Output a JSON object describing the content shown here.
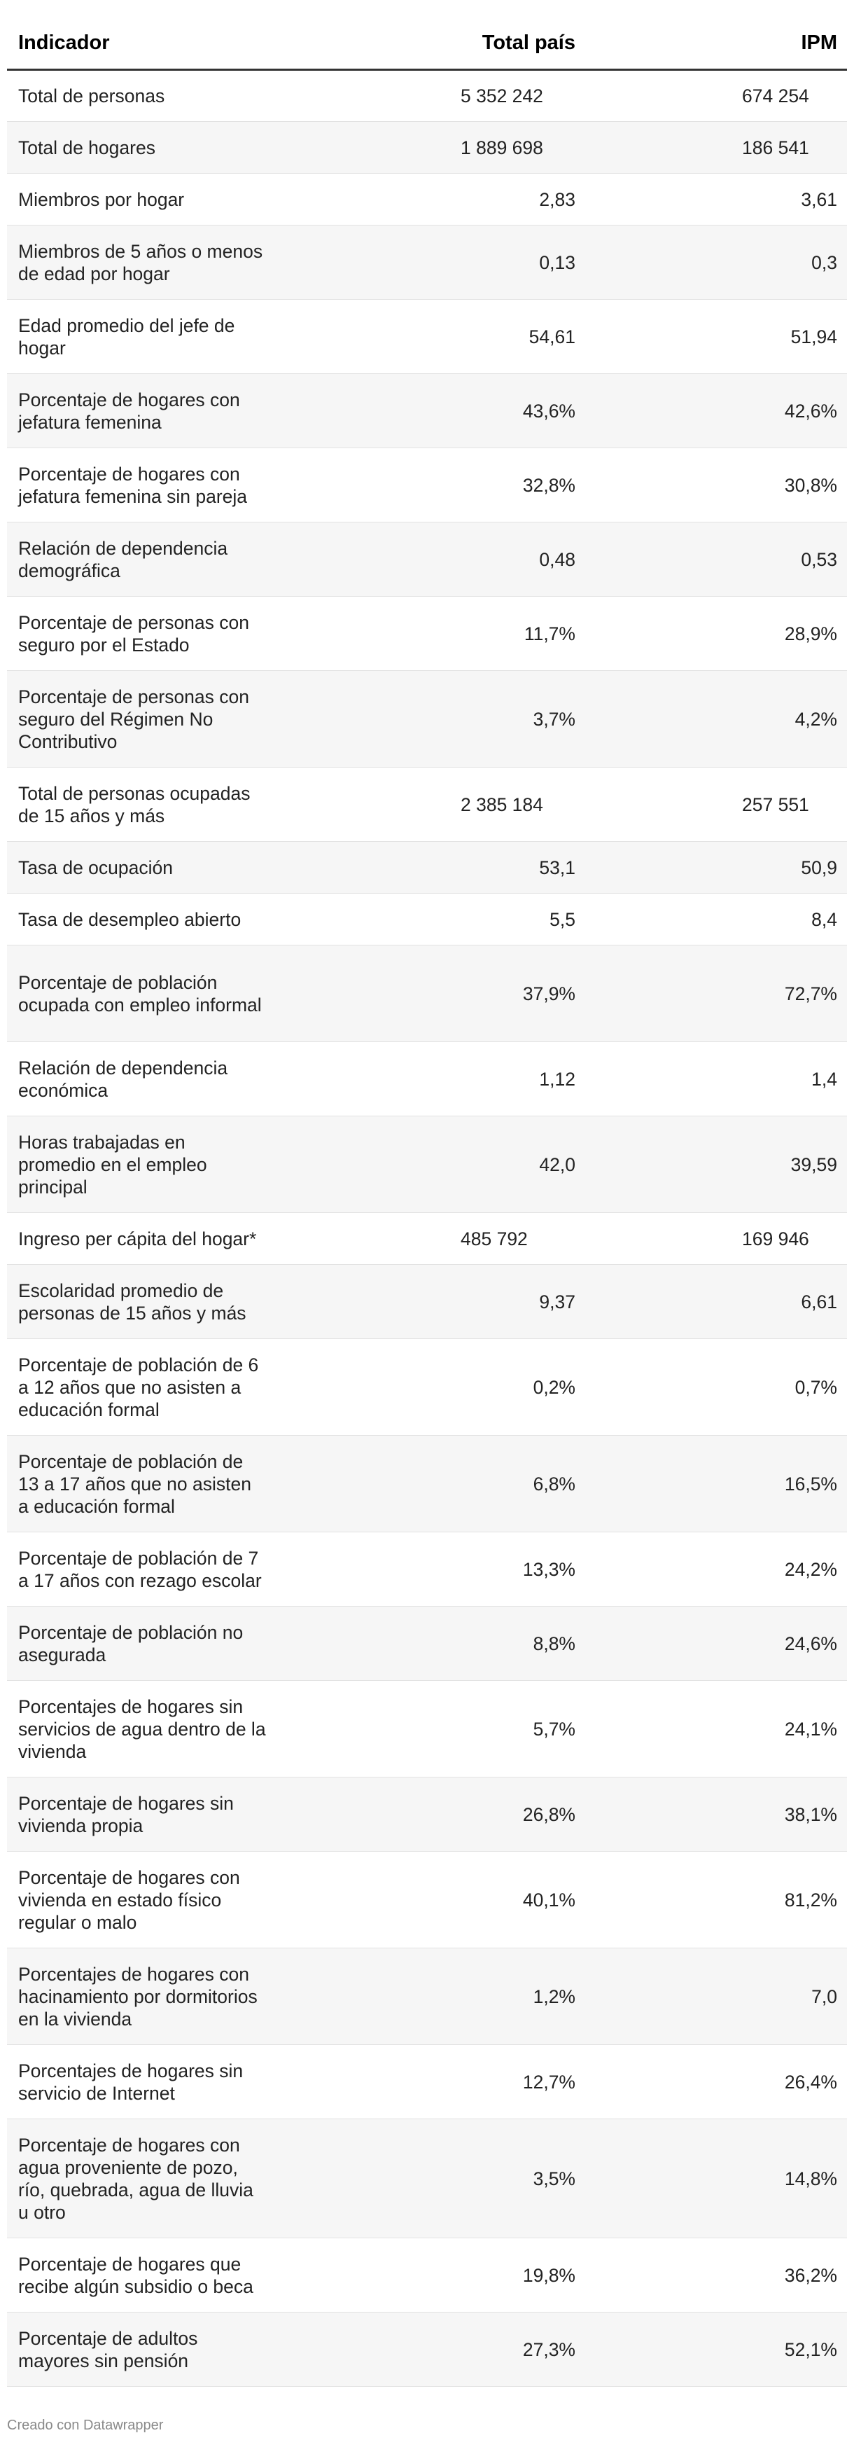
{
  "chart_data": {
    "type": "table",
    "columns": [
      "Indicador",
      "Total país",
      "IPM"
    ],
    "rows": [
      {
        "indicador": "Total de personas",
        "total_pais": "5 352 242",
        "ipm": "674 254",
        "big": true
      },
      {
        "indicador": "Total de hogares",
        "total_pais": "1 889 698",
        "ipm": "186 541",
        "big": true
      },
      {
        "indicador": "Miembros por hogar",
        "total_pais": "2,83",
        "ipm": "3,61"
      },
      {
        "indicador": "Miembros de 5 años o menos de edad por hogar",
        "total_pais": "0,13",
        "ipm": "0,3"
      },
      {
        "indicador": "Edad promedio del jefe de hogar",
        "total_pais": "54,61",
        "ipm": "51,94"
      },
      {
        "indicador": "Porcentaje de hogares con jefatura femenina",
        "total_pais": "43,6%",
        "ipm": "42,6%"
      },
      {
        "indicador": "Porcentaje de hogares con jefatura femenina sin pareja",
        "total_pais": "32,8%",
        "ipm": "30,8%"
      },
      {
        "indicador": "Relación de dependencia demográfica",
        "total_pais": "0,48",
        "ipm": "0,53"
      },
      {
        "indicador": "Porcentaje de personas con seguro por el Estado",
        "total_pais": "11,7%",
        "ipm": "28,9%"
      },
      {
        "indicador": "Porcentaje de personas con seguro del Régimen No Contributivo",
        "total_pais": "3,7%",
        "ipm": "4,2%"
      },
      {
        "indicador": "Total de personas ocupadas de 15 años y más",
        "total_pais": "2 385 184",
        "ipm": "257 551",
        "big": true
      },
      {
        "indicador": "Tasa de ocupación",
        "total_pais": "53,1",
        "ipm": "50,9"
      },
      {
        "indicador": "Tasa de desempleo abierto",
        "total_pais": "5,5",
        "ipm": "8,4"
      },
      {
        "indicador": "Porcentaje de población ocupada con empleo informal",
        "total_pais": "37,9%",
        "ipm": "72,7%"
      },
      {
        "indicador": "Relación de dependencia económica",
        "total_pais": "1,12",
        "ipm": "1,4"
      },
      {
        "indicador": "Horas trabajadas en promedio en el empleo principal",
        "total_pais": "42,0",
        "ipm": "39,59"
      },
      {
        "indicador": "Ingreso per cápita del hogar*",
        "total_pais": "485 792",
        "ipm": "169 946",
        "big": true
      },
      {
        "indicador": "Escolaridad promedio de personas de 15 años y más",
        "total_pais": "9,37",
        "ipm": "6,61"
      },
      {
        "indicador": "Porcentaje de población de 6 a 12 años que no asisten a educación formal",
        "total_pais": "0,2%",
        "ipm": "0,7%"
      },
      {
        "indicador": "Porcentaje de población de 13 a 17 años que no asisten a educación formal",
        "total_pais": "6,8%",
        "ipm": "16,5%"
      },
      {
        "indicador": "Porcentaje de población de 7 a 17 años con rezago escolar",
        "total_pais": "13,3%",
        "ipm": "24,2%"
      },
      {
        "indicador": "Porcentaje de población no asegurada",
        "total_pais": "8,8%",
        "ipm": "24,6%"
      },
      {
        "indicador": "Porcentajes de hogares sin servicios de agua dentro de la vivienda",
        "total_pais": "5,7%",
        "ipm": "24,1%"
      },
      {
        "indicador": "Porcentaje de hogares sin vivienda propia",
        "total_pais": "26,8%",
        "ipm": "38,1%"
      },
      {
        "indicador": "Porcentaje de hogares con vivienda en estado físico regular o malo",
        "total_pais": "40,1%",
        "ipm": "81,2%"
      },
      {
        "indicador": "Porcentajes de hogares con hacinamiento por dormitorios en la vivienda",
        "total_pais": "1,2%",
        "ipm": "7,0"
      },
      {
        "indicador": "Porcentajes de hogares sin servicio de Internet",
        "total_pais": "12,7%",
        "ipm": "26,4%"
      },
      {
        "indicador": "Porcentaje de hogares con agua proveniente de pozo, río, quebrada, agua de lluvia u otro",
        "total_pais": "3,5%",
        "ipm": "14,8%"
      },
      {
        "indicador": "Porcentaje de hogares que recibe algún subsidio o beca",
        "total_pais": "19,8%",
        "ipm": "36,2%"
      },
      {
        "indicador": "Porcentaje de adultos mayores sin pensión",
        "total_pais": "27,3%",
        "ipm": "52,1%"
      }
    ]
  },
  "footer": "Creado con Datawrapper"
}
